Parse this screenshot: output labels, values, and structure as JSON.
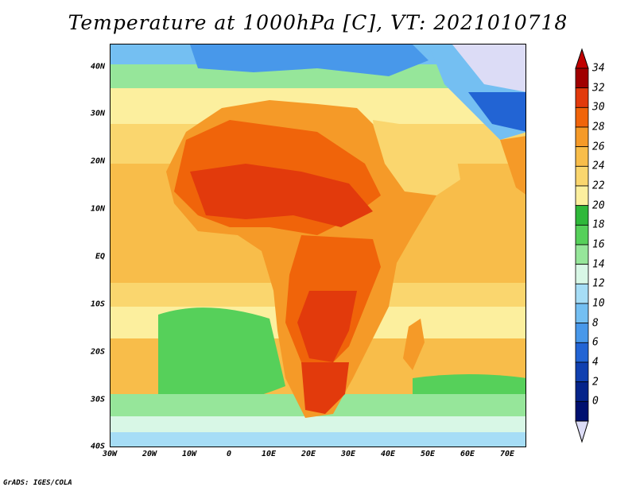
{
  "title": "Temperature at 1000hPa [C], VT: 2021010718",
  "credit": "GrADS: IGES/COLA",
  "lat_labels": [
    "40N",
    "30N",
    "20N",
    "10N",
    "EQ",
    "10S",
    "20S",
    "30S",
    "40S"
  ],
  "lon_labels": [
    "30W",
    "20W",
    "10W",
    "0",
    "10E",
    "20E",
    "30E",
    "40E",
    "50E",
    "60E",
    "70E"
  ],
  "colorbar": {
    "levels": [
      "34",
      "32",
      "30",
      "28",
      "26",
      "24",
      "22",
      "20",
      "18",
      "16",
      "14",
      "12",
      "10",
      "8",
      "6",
      "4",
      "2",
      "0"
    ],
    "colors": [
      "#a00000",
      "#e23a0c",
      "#f0640a",
      "#f59a28",
      "#f8bd4a",
      "#fad66e",
      "#fcef9e",
      "#2fb83a",
      "#56d05a",
      "#96e69a",
      "#d8f7e6",
      "#a6ddf6",
      "#74bff2",
      "#4898ea",
      "#2264d4",
      "#1040b0",
      "#05248a",
      "#001070"
    ],
    "over_color": "#c00000",
    "under_color": "#dcdcf6"
  }
}
